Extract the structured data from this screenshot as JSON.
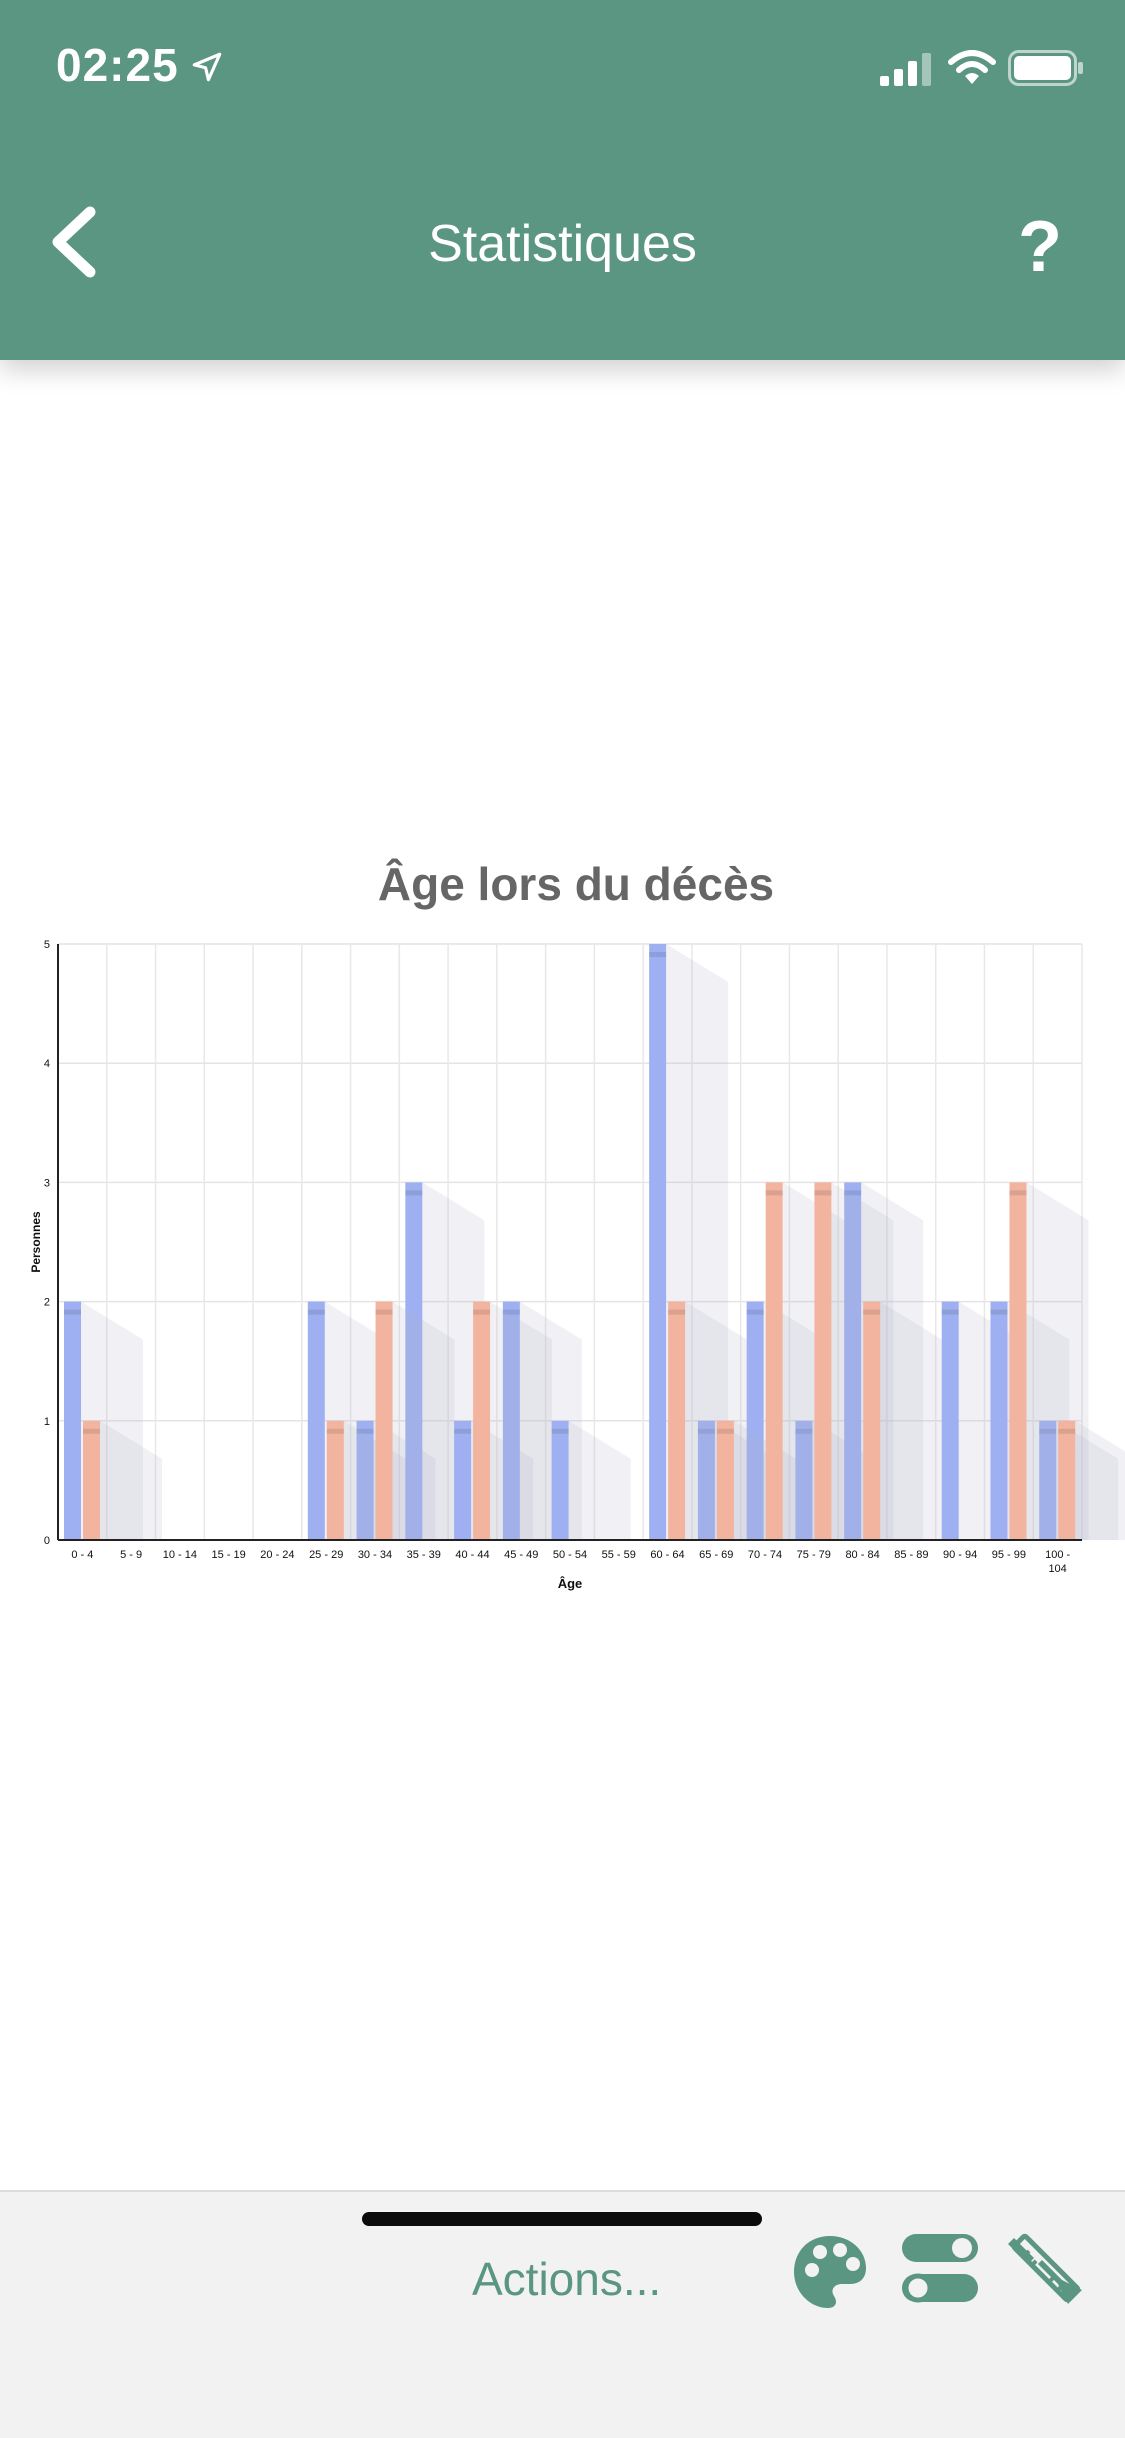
{
  "status": {
    "time": "02:25"
  },
  "header": {
    "title": "Statistiques",
    "help": "?"
  },
  "footer": {
    "actions_label": "Actions..."
  },
  "colors": {
    "header_bg": "#5a9681",
    "series_a": "#9fb0f2",
    "series_b": "#f2b49f",
    "grid": "#e6e6e6"
  },
  "icons": {
    "status": [
      "location-arrow-icon",
      "signal-icon",
      "wifi-icon",
      "battery-icon"
    ],
    "header": [
      "back-chevron-icon"
    ],
    "footer": [
      "palette-icon",
      "toggle-switches-icon",
      "tools-icon"
    ]
  },
  "chart_data": {
    "type": "bar",
    "title": "Âge lors du décès",
    "xlabel": "Âge",
    "ylabel": "Personnes",
    "ylim": [
      0,
      5
    ],
    "yticks": [
      0,
      1,
      2,
      3,
      4,
      5
    ],
    "grid": true,
    "categories": [
      "0 - 4",
      "5 - 9",
      "10 - 14",
      "15 - 19",
      "20 - 24",
      "25 - 29",
      "30 - 34",
      "35 - 39",
      "40 - 44",
      "45 - 49",
      "50 - 54",
      "55 - 59",
      "60 - 64",
      "65 - 69",
      "70 - 74",
      "75 - 79",
      "80 - 84",
      "85 - 89",
      "90 - 94",
      "95 - 99",
      "100 - 104"
    ],
    "series": [
      {
        "color": "#9fb0f2",
        "values": [
          2,
          0,
          0,
          0,
          0,
          2,
          1,
          3,
          1,
          2,
          1,
          0,
          5,
          1,
          2,
          1,
          3,
          0,
          2,
          2,
          1
        ]
      },
      {
        "color": "#f2b49f",
        "values": [
          1,
          0,
          0,
          0,
          0,
          1,
          2,
          0,
          2,
          0,
          0,
          0,
          2,
          1,
          3,
          3,
          2,
          0,
          0,
          3,
          1
        ]
      }
    ]
  }
}
